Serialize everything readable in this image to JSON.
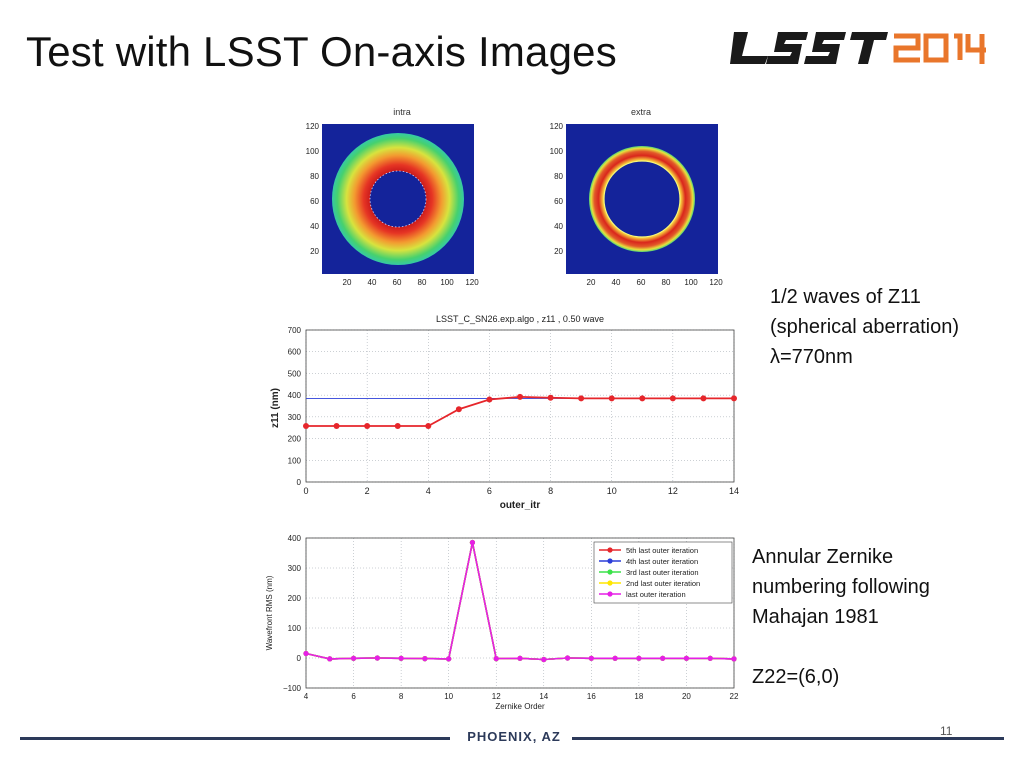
{
  "slide": {
    "title": "Test with LSST On-axis Images",
    "logo_text": "LSST2014",
    "footer_location": "PHOENIX, AZ",
    "page_number": "11"
  },
  "notes": {
    "z11_lines": [
      "1/2 waves of Z11",
      "(spherical aberration)",
      "λ=770nm"
    ],
    "zernike_lines": [
      "Annular Zernike",
      "numbering following",
      "Mahajan 1981"
    ],
    "z22": "Z22=(6,0)"
  },
  "colors": {
    "image_background": "#14239a",
    "ring_outer": "#3fcf6a",
    "ring_mid": "#e3e13a",
    "ring_inner": "#d9261c",
    "series_red": "#e6262b",
    "series_blue": "#2c3ed8",
    "series_green": "#3be24a",
    "series_yellow": "#ffe600",
    "series_magenta": "#e61fe6",
    "footer": "#2c3a5a"
  },
  "chart_data": [
    {
      "type": "heatmap",
      "title": "intra",
      "xticks": [
        "20",
        "40",
        "60",
        "80",
        "100",
        "120"
      ],
      "yticks": [
        "20",
        "40",
        "60",
        "80",
        "100",
        "120"
      ],
      "xlim": [
        0,
        120
      ],
      "ylim": [
        0,
        120
      ],
      "ring": {
        "center": [
          60,
          60
        ],
        "outer_radius": 50,
        "inner_radius": 22
      }
    },
    {
      "type": "heatmap",
      "title": "extra",
      "xticks": [
        "20",
        "40",
        "60",
        "80",
        "100",
        "120"
      ],
      "yticks": [
        "20",
        "40",
        "60",
        "80",
        "100",
        "120"
      ],
      "xlim": [
        0,
        120
      ],
      "ylim": [
        0,
        120
      ],
      "ring": {
        "center": [
          60,
          60
        ],
        "outer_radius": 40,
        "inner_radius": 29
      }
    },
    {
      "type": "line",
      "title": "LSST_C_SN26.exp.algo , z11 , 0.50 wave",
      "xlabel": "outer_itr",
      "ylabel": "z11 (nm)",
      "xlim": [
        0,
        14
      ],
      "ylim": [
        0,
        700
      ],
      "xticks": [
        "0",
        "2",
        "4",
        "6",
        "8",
        "10",
        "12",
        "14"
      ],
      "yticks": [
        "0",
        "100",
        "200",
        "300",
        "400",
        "500",
        "600",
        "700"
      ],
      "reference_line": 385,
      "grid": true,
      "series": [
        {
          "x": [
            0,
            1,
            2,
            3,
            4,
            5,
            6,
            7,
            8,
            9,
            10,
            11,
            12,
            13,
            14
          ],
          "values": [
            258,
            258,
            258,
            258,
            258,
            335,
            380,
            392,
            388,
            385,
            385,
            385,
            385,
            385,
            385
          ]
        }
      ]
    },
    {
      "type": "line",
      "xlabel": "Zernike Order",
      "ylabel": "Wavefront RMS (nm)",
      "xlim": [
        4,
        22
      ],
      "ylim": [
        -100,
        400
      ],
      "xticks": [
        "4",
        "6",
        "8",
        "10",
        "12",
        "14",
        "16",
        "18",
        "20",
        "22"
      ],
      "yticks": [
        "−100",
        "0",
        "100",
        "200",
        "300",
        "400"
      ],
      "grid": true,
      "legend_position": "top-right",
      "x": [
        4,
        5,
        6,
        7,
        8,
        9,
        10,
        11,
        12,
        13,
        14,
        15,
        16,
        17,
        18,
        19,
        20,
        21,
        22
      ],
      "series": [
        {
          "name": "5th last outer iteration",
          "values": [
            15,
            -3,
            -1,
            0,
            -1,
            -2,
            -3,
            385,
            -2,
            -1,
            -5,
            0,
            -1,
            -1,
            -1,
            -1,
            -1,
            -1,
            -3
          ]
        },
        {
          "name": "4th last outer iteration",
          "values": [
            15,
            -3,
            -1,
            0,
            -1,
            -2,
            -3,
            385,
            -2,
            -1,
            -5,
            0,
            -1,
            -1,
            -1,
            -1,
            -1,
            -1,
            -3
          ]
        },
        {
          "name": "3rd last outer iteration",
          "values": [
            15,
            -3,
            -1,
            0,
            -1,
            -2,
            -3,
            385,
            -2,
            -1,
            -5,
            0,
            -1,
            -1,
            -1,
            -1,
            -1,
            -1,
            -3
          ]
        },
        {
          "name": "2nd last outer iteration",
          "values": [
            15,
            -3,
            -1,
            0,
            -1,
            -2,
            -3,
            385,
            -2,
            -1,
            -5,
            0,
            -1,
            -1,
            -1,
            -1,
            -1,
            -1,
            -3
          ]
        },
        {
          "name": "last outer iteration",
          "values": [
            15,
            -3,
            -1,
            0,
            -1,
            -2,
            -3,
            385,
            -2,
            -1,
            -5,
            0,
            -1,
            -1,
            -1,
            -1,
            -1,
            -1,
            -3
          ]
        }
      ]
    }
  ]
}
